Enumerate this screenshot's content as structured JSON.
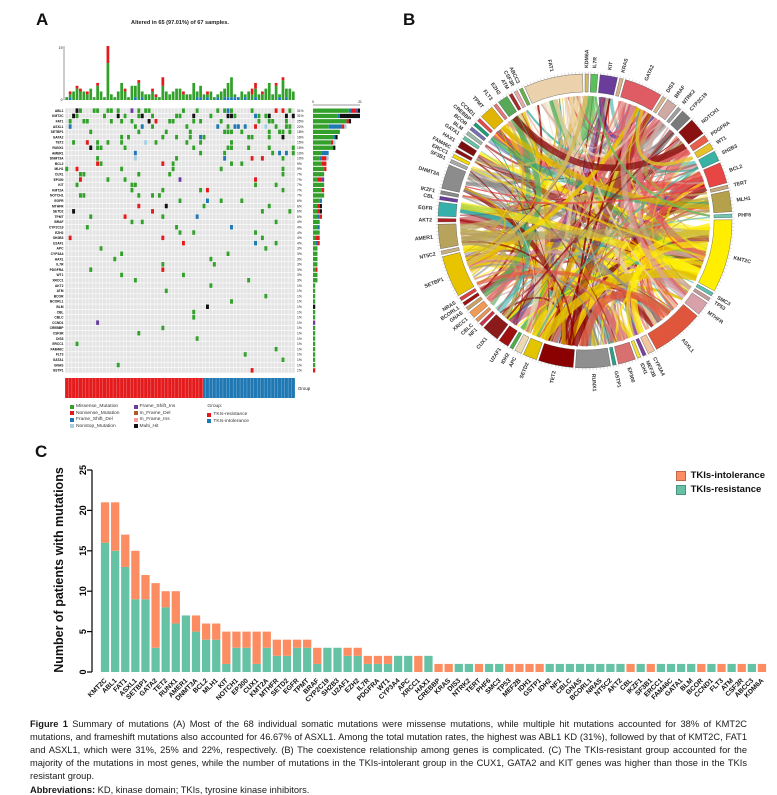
{
  "panels": {
    "a_label": "A",
    "b_label": "B",
    "c_label": "C"
  },
  "chart_data": [
    {
      "type": "heatmap",
      "name": "oncoprint-mutation-summary",
      "title": "Altered in 65 (97.01%) of 67 samples.",
      "samples": 67,
      "top_axis": {
        "min_label": "0",
        "max_label": "19"
      },
      "right_axis": {
        "min_label": "0",
        "max_label": "21"
      },
      "group_label": "Group",
      "group_track": {
        "resistance_fraction": 0.6,
        "resistance_color": "#e41a1c",
        "intolerance_color": "#1f78b4"
      },
      "cell_colors": {
        "green": "#33a02c",
        "red": "#e31a1c",
        "blue": "#1f78b4",
        "black": "#111111",
        "purple": "#6a3d9a",
        "lightblue": "#a6cee3",
        "background": "#e4e4e4"
      },
      "genes": [
        {
          "name": "ABL1",
          "pct": "31%",
          "count": 21
        },
        {
          "name": "KMT2C",
          "pct": "31%",
          "count": 21
        },
        {
          "name": "FAT1",
          "pct": "25%",
          "count": 17
        },
        {
          "name": "ASXL1",
          "pct": "22%",
          "count": 15
        },
        {
          "name": "SETBP1",
          "pct": "18%",
          "count": 12
        },
        {
          "name": "GATA2",
          "pct": "16%",
          "count": 11
        },
        {
          "name": "TET2",
          "pct": "15%",
          "count": 10
        },
        {
          "name": "RUNX1",
          "pct": "15%",
          "count": 10
        },
        {
          "name": "AMER1",
          "pct": "10%",
          "count": 7
        },
        {
          "name": "DNMT3A",
          "pct": "10%",
          "count": 7
        },
        {
          "name": "BCL2",
          "pct": "9%",
          "count": 6
        },
        {
          "name": "MLH1",
          "pct": "9%",
          "count": 6
        },
        {
          "name": "CUX1",
          "pct": "7%",
          "count": 5
        },
        {
          "name": "EP300",
          "pct": "7%",
          "count": 5
        },
        {
          "name": "KIT",
          "pct": "7%",
          "count": 5
        },
        {
          "name": "KMT2A",
          "pct": "7%",
          "count": 5
        },
        {
          "name": "NOTCH1",
          "pct": "7%",
          "count": 5
        },
        {
          "name": "EGFR",
          "pct": "6%",
          "count": 4
        },
        {
          "name": "MTHFR",
          "pct": "6%",
          "count": 4
        },
        {
          "name": "SETD2",
          "pct": "6%",
          "count": 4
        },
        {
          "name": "TPMT",
          "pct": "6%",
          "count": 4
        },
        {
          "name": "BRAF",
          "pct": "4%",
          "count": 3
        },
        {
          "name": "CYP2C19",
          "pct": "4%",
          "count": 3
        },
        {
          "name": "EZH2",
          "pct": "4%",
          "count": 3
        },
        {
          "name": "SH2B3",
          "pct": "4%",
          "count": 3
        },
        {
          "name": "U2AF1",
          "pct": "4%",
          "count": 3
        },
        {
          "name": "APC",
          "pct": "3%",
          "count": 2
        },
        {
          "name": "CYP3A4",
          "pct": "3%",
          "count": 2
        },
        {
          "name": "HAX1",
          "pct": "3%",
          "count": 2
        },
        {
          "name": "IL7R",
          "pct": "3%",
          "count": 2
        },
        {
          "name": "PDGFRA",
          "pct": "3%",
          "count": 2
        },
        {
          "name": "WT1",
          "pct": "3%",
          "count": 2
        },
        {
          "name": "XRCC1",
          "pct": "3%",
          "count": 2
        },
        {
          "name": "AKT2",
          "pct": "1%",
          "count": 1
        },
        {
          "name": "ATM",
          "pct": "1%",
          "count": 1
        },
        {
          "name": "BCOR",
          "pct": "1%",
          "count": 1
        },
        {
          "name": "BCORL1",
          "pct": "1%",
          "count": 1
        },
        {
          "name": "BLM",
          "pct": "1%",
          "count": 1
        },
        {
          "name": "CBL",
          "pct": "1%",
          "count": 1
        },
        {
          "name": "CBLC",
          "pct": "1%",
          "count": 1
        },
        {
          "name": "CCND1",
          "pct": "1%",
          "count": 1
        },
        {
          "name": "CREBBP",
          "pct": "1%",
          "count": 1
        },
        {
          "name": "CSF3R",
          "pct": "1%",
          "count": 1
        },
        {
          "name": "DIS3",
          "pct": "1%",
          "count": 1
        },
        {
          "name": "ERCC1",
          "pct": "1%",
          "count": 1
        },
        {
          "name": "FAM46C",
          "pct": "1%",
          "count": 1
        },
        {
          "name": "FLT3",
          "pct": "1%",
          "count": 1
        },
        {
          "name": "GATA1",
          "pct": "1%",
          "count": 1
        },
        {
          "name": "GNAS",
          "pct": "1%",
          "count": 1
        },
        {
          "name": "GSTP1",
          "pct": "1%",
          "count": 1
        }
      ],
      "legend": {
        "mutation_types": [
          {
            "label": "Missense_Mutation",
            "color": "#33a02c"
          },
          {
            "label": "Nonsense_Mutation",
            "color": "#e31a1c"
          },
          {
            "label": "Frame_Shift_Del",
            "color": "#1f78b4"
          },
          {
            "label": "Nonstop_Mutation",
            "color": "#a6cee3"
          },
          {
            "label": "Frame_Shift_Ins",
            "color": "#6a3d9a"
          },
          {
            "label": "In_Frame_Del",
            "color": "#b15928"
          },
          {
            "label": "In_Frame_Ins",
            "color": "#fb9a99"
          },
          {
            "label": "Multi_Hit",
            "color": "#111111"
          }
        ],
        "group_title": "Group:",
        "groups": [
          {
            "label": "TKIs-resistance",
            "color": "#e41a1c"
          },
          {
            "label": "TKIs-intolerance",
            "color": "#1f78b4"
          }
        ]
      }
    },
    {
      "type": "chord",
      "name": "circos-gene-coexistence",
      "genes": [
        {
          "name": "KDM6A",
          "size": 1,
          "color": "#d4b95e"
        },
        {
          "name": "IL7R",
          "size": 2,
          "color": "#5bbf5b"
        },
        {
          "name": "KIT",
          "size": 5,
          "color": "#6a3d9a"
        },
        {
          "name": "KRAS",
          "size": 1,
          "color": "#d9b38c"
        },
        {
          "name": "GATA2",
          "size": 11,
          "color": "#e05c65"
        },
        {
          "name": "DIS3",
          "size": 1,
          "color": "#d9b38c"
        },
        {
          "name": "BRAF",
          "size": 3,
          "color": "#cfaaa5"
        },
        {
          "name": "NTRK2",
          "size": 1,
          "color": "#9e9e9e"
        },
        {
          "name": "CYP2C19",
          "size": 3,
          "color": "#7a7a7a"
        },
        {
          "name": "NOTCH1",
          "size": 5,
          "color": "#8b1010"
        },
        {
          "name": "PDGFRA",
          "size": 2,
          "color": "#e8604c"
        },
        {
          "name": "WT1",
          "size": 2,
          "color": "#e6c229"
        },
        {
          "name": "SH2B3",
          "size": 3,
          "color": "#38b2a3"
        },
        {
          "name": "BCL2",
          "size": 6,
          "color": "#e84545"
        },
        {
          "name": "TERT",
          "size": 1,
          "color": "#c9a97a"
        },
        {
          "name": "MLH1",
          "size": 6,
          "color": "#b5a04c"
        },
        {
          "name": "PHF6",
          "size": 1,
          "color": "#6fc7b2"
        },
        {
          "name": "KMT2C",
          "size": 21,
          "color": "#ffee00"
        },
        {
          "name": "SMC3",
          "size": 1,
          "color": "#5fbfae"
        },
        {
          "name": "TP53",
          "size": 1,
          "color": "#c49a9a"
        },
        {
          "name": "MTHFR",
          "size": 4,
          "color": "#d8a0a8"
        },
        {
          "name": "ASXL1",
          "size": 15,
          "color": "#e0563c"
        },
        {
          "name": "CYP3A4",
          "size": 2,
          "color": "#f2c4a2"
        },
        {
          "name": "MEF2B",
          "size": 1,
          "color": "#7b3fa0"
        },
        {
          "name": "IDH1",
          "size": 1,
          "color": "#efe03e"
        },
        {
          "name": "EP300",
          "size": 5,
          "color": "#d87070"
        },
        {
          "name": "GSTP1",
          "size": 1,
          "color": "#2ca089"
        },
        {
          "name": "RUNX1",
          "size": 10,
          "color": "#8f8f8f"
        },
        {
          "name": "TET2",
          "size": 10,
          "color": "#8b0000"
        },
        {
          "name": "SETD2",
          "size": 4,
          "color": "#e3c400"
        },
        {
          "name": "APC",
          "size": 2,
          "color": "#ead9b4"
        },
        {
          "name": "IDH2",
          "size": 1,
          "color": "#4daf4a"
        },
        {
          "name": "U2AF1",
          "size": 3,
          "color": "#9e0f0f"
        },
        {
          "name": "CUX1",
          "size": 5,
          "color": "#8b1a1a"
        },
        {
          "name": "NF1",
          "size": 1,
          "color": "#cc3344"
        },
        {
          "name": "CBLC",
          "size": 1,
          "color": "#e8935a"
        },
        {
          "name": "XRCC1",
          "size": 2,
          "color": "#ef9b55"
        },
        {
          "name": "GNAS",
          "size": 1,
          "color": "#caa168"
        },
        {
          "name": "BCORL1",
          "size": 1,
          "color": "#9c1313"
        },
        {
          "name": "NRAS",
          "size": 1,
          "color": "#d94040"
        },
        {
          "name": "SETBP1",
          "size": 12,
          "color": "#e8c400"
        },
        {
          "name": "NT5C2",
          "size": 1,
          "color": "#c7b286"
        },
        {
          "name": "AMER1",
          "size": 7,
          "color": "#b8a35c"
        },
        {
          "name": "AKT2",
          "size": 1,
          "color": "#b02020"
        },
        {
          "name": "EGFR",
          "size": 4,
          "color": "#35b0ab"
        },
        {
          "name": "CBL",
          "size": 1,
          "color": "#6a3d9a"
        },
        {
          "name": "IKZF1",
          "size": 1,
          "color": "#8a8a8a"
        },
        {
          "name": "DNMT3A",
          "size": 7,
          "color": "#8c8c8c"
        },
        {
          "name": "SF3B1",
          "size": 1,
          "color": "#a9a9a9"
        },
        {
          "name": "ERCC1",
          "size": 1,
          "color": "#f2d800"
        },
        {
          "name": "FAM46C",
          "size": 1,
          "color": "#8e1111"
        },
        {
          "name": "HAX1",
          "size": 2,
          "color": "#7d0f0f"
        },
        {
          "name": "GATA1",
          "size": 1,
          "color": "#66c2a5"
        },
        {
          "name": "BLM",
          "size": 1,
          "color": "#9fb8a8"
        },
        {
          "name": "BCOR",
          "size": 1,
          "color": "#7570b3"
        },
        {
          "name": "CREBBP",
          "size": 1,
          "color": "#1b9e77"
        },
        {
          "name": "CCND1",
          "size": 1,
          "color": "#e24a4a"
        },
        {
          "name": "TPMT",
          "size": 4,
          "color": "#e0b400"
        },
        {
          "name": "FLT3",
          "size": 1,
          "color": "#e07878"
        },
        {
          "name": "EZH2",
          "size": 3,
          "color": "#57a857"
        },
        {
          "name": "ATM",
          "size": 1,
          "color": "#a52a2a"
        },
        {
          "name": "CSF3R",
          "size": 1,
          "color": "#eaa8a8"
        },
        {
          "name": "ABCC3",
          "size": 1,
          "color": "#6ab04c"
        },
        {
          "name": "FAT1",
          "size": 17,
          "color": "#ecd2ac"
        }
      ]
    },
    {
      "type": "bar",
      "name": "patients-with-mutations-by-gene",
      "stacked": true,
      "ylabel": "Number of patients with mutations",
      "ylim": [
        0,
        25
      ],
      "yticks": [
        0,
        5,
        10,
        15,
        20,
        25
      ],
      "legend_position": "top-right",
      "categories": [
        "KMT2C",
        "ABL1",
        "FAT1",
        "ASXL1",
        "SETBP1",
        "GATA2",
        "TET2",
        "RUNX1",
        "AMER1",
        "DNMT3A",
        "BCL2",
        "MLH1",
        "KIT",
        "NOTCH1",
        "EP300",
        "CUX1",
        "KMT2A",
        "MTHFR",
        "SETD2",
        "EGFR",
        "TPMT",
        "BRAF",
        "CYP2C19",
        "SH2B3",
        "U2AF1",
        "EZH2",
        "IL7R",
        "PDGFRA",
        "WT1",
        "CYP3A4",
        "APC",
        "XRCC1",
        "HAX1",
        "CREBBP",
        "KRAS",
        "DIS3",
        "NTRK2",
        "TERT",
        "PHF6",
        "SMC3",
        "TP53",
        "MEF2B",
        "IDH1",
        "GSTP1",
        "IDH2",
        "NF1",
        "CBLC",
        "GNAS",
        "BCORL1",
        "NRAS",
        "NT5C2",
        "AKT2",
        "CBL",
        "IKZF1",
        "SF3B1",
        "ERCC1",
        "FAM46C",
        "GATA1",
        "BLM",
        "BCOR",
        "CCND1",
        "FLT3",
        "ATM",
        "CSF3R",
        "ABCC3",
        "KDM6A"
      ],
      "series": [
        {
          "name": "TKIs-intolerance",
          "color": "#FC8D62",
          "values": [
            5,
            6,
            4,
            6,
            3,
            8,
            2,
            4,
            0,
            2,
            2,
            2,
            4,
            2,
            2,
            4,
            2,
            2,
            2,
            1,
            1,
            2,
            0,
            0,
            1,
            1,
            1,
            1,
            1,
            0,
            0,
            2,
            0,
            1,
            1,
            0,
            0,
            1,
            0,
            0,
            1,
            1,
            1,
            1,
            0,
            0,
            0,
            0,
            0,
            0,
            0,
            0,
            1,
            0,
            1,
            0,
            0,
            0,
            0,
            1,
            0,
            1,
            0,
            1,
            0,
            1
          ]
        },
        {
          "name": "TKIs-resistance",
          "color": "#66C2A5",
          "values": [
            16,
            15,
            13,
            9,
            9,
            3,
            8,
            6,
            7,
            5,
            4,
            4,
            1,
            3,
            3,
            1,
            3,
            2,
            2,
            3,
            3,
            1,
            3,
            3,
            2,
            2,
            1,
            1,
            1,
            2,
            2,
            0,
            2,
            0,
            0,
            1,
            1,
            0,
            1,
            1,
            0,
            0,
            0,
            0,
            1,
            1,
            1,
            1,
            1,
            1,
            1,
            1,
            0,
            1,
            0,
            1,
            1,
            1,
            1,
            0,
            1,
            0,
            1,
            0,
            1,
            0
          ]
        }
      ]
    }
  ],
  "caption": {
    "figure_label": "Figure 1",
    "body": " Summary of mutations (A) Most of the 68 individual somatic mutations were missense mutations, while multiple hit mutations accounted for 38% of KMT2C mutations, and frameshift mutations also accounted for 46.67% of ASXL1. Among the total mutation rates, the highest was ABL1 KD (31%), followed by that of KMT2C, FAT1 and ASXL1, which were 31%, 25% and 22%, respectively. (B) The coexistence relationship among genes is complicated. (C) The TKIs-resistant group accounted for the majority of the mutations in most genes, while the number of mutations in the TKIs-intolerant group in the CUX1, GATA2 and KIT genes was higher than those in the TKIs resistant group.",
    "abbr_label": "Abbreviations:",
    "abbr_body": " KD, kinase domain; TKIs, tyrosine kinase inhibitors."
  }
}
